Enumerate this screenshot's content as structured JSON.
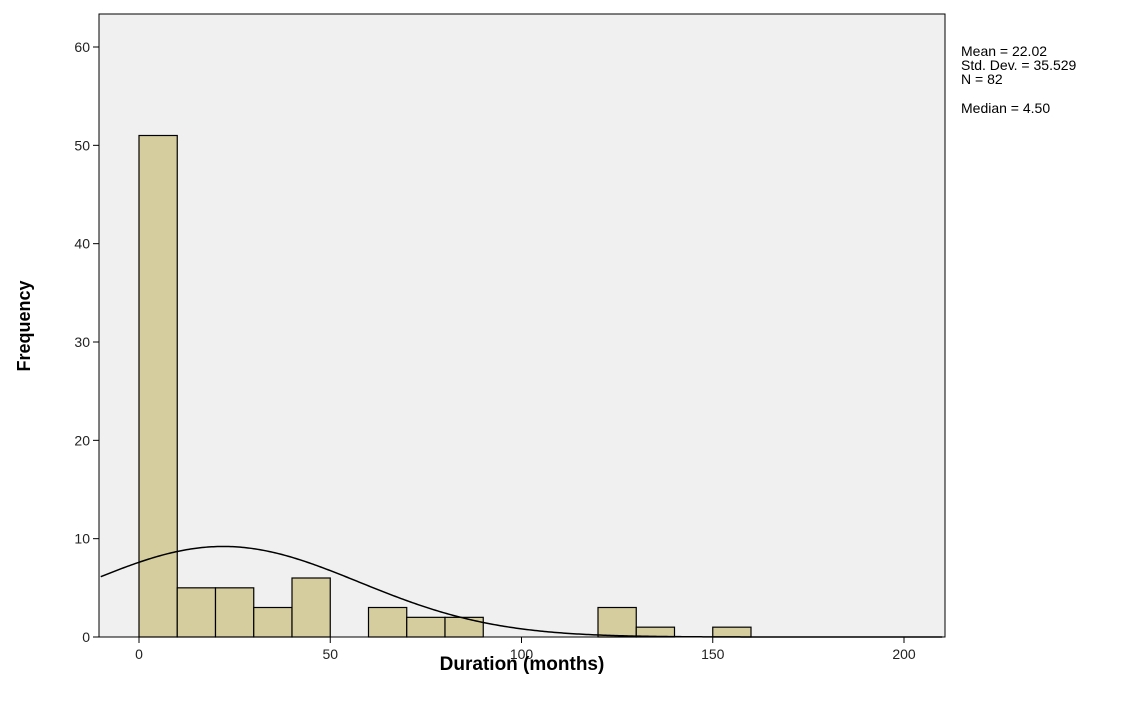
{
  "chart_data": {
    "type": "bar",
    "subtype": "histogram with normal curve",
    "xlabel": "Duration (months)",
    "ylabel": "Frequency",
    "xlim": [
      -10,
      210
    ],
    "ylim": [
      0,
      60
    ],
    "xticks": [
      0,
      50,
      100,
      150,
      200
    ],
    "yticks": [
      0,
      10,
      20,
      30,
      40,
      50,
      60
    ],
    "bin_width": 10,
    "bins": [
      {
        "start": 0,
        "end": 10,
        "count": 51
      },
      {
        "start": 10,
        "end": 20,
        "count": 5
      },
      {
        "start": 20,
        "end": 30,
        "count": 5
      },
      {
        "start": 30,
        "end": 40,
        "count": 3
      },
      {
        "start": 40,
        "end": 50,
        "count": 6
      },
      {
        "start": 60,
        "end": 70,
        "count": 3
      },
      {
        "start": 70,
        "end": 80,
        "count": 2
      },
      {
        "start": 80,
        "end": 90,
        "count": 2
      },
      {
        "start": 120,
        "end": 130,
        "count": 3
      },
      {
        "start": 130,
        "end": 140,
        "count": 1
      },
      {
        "start": 150,
        "end": 160,
        "count": 1
      }
    ],
    "normal_curve": {
      "mean": 22.02,
      "std_dev": 35.529,
      "n": 82
    },
    "stats_labels": [
      "Mean = 22.02",
      "Std. Dev. = 35.529",
      "N = 82",
      "Median = 4.50"
    ],
    "grid": false,
    "colors": {
      "bar_fill": "#D6CD9E",
      "bar_stroke": "#000000",
      "plot_background": "#F0F0F0",
      "curve": "#000000"
    }
  }
}
